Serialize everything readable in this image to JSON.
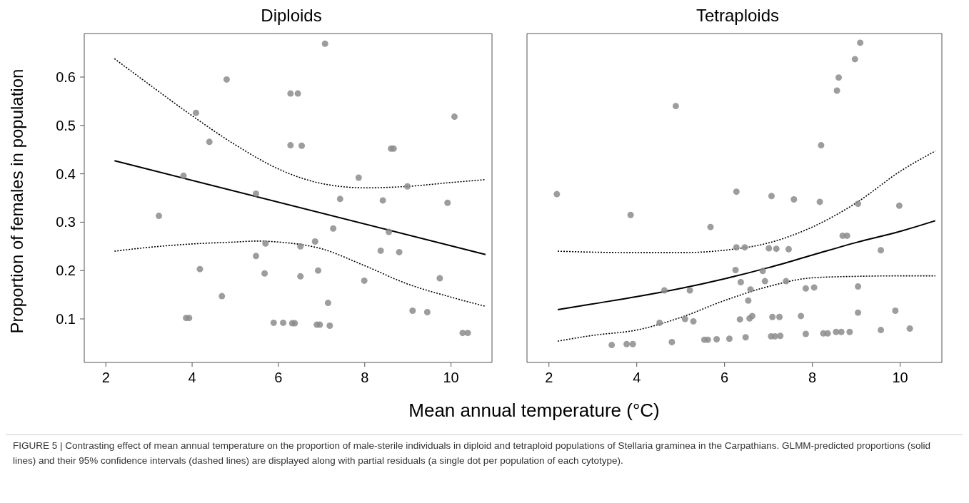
{
  "chart_data": [
    {
      "type": "scatter",
      "title": "Diploids",
      "ylabel": "Proportion of females in population",
      "xlabel": "Mean annual temperature (°C)",
      "xlim": [
        1.5,
        10.95
      ],
      "xticks": [
        2,
        4,
        6,
        8,
        10
      ],
      "ylim": [
        0.01,
        0.69
      ],
      "yticks": [
        0.1,
        0.2,
        0.3,
        0.4,
        0.5,
        0.6
      ],
      "grid": false,
      "annotations": [
        "FIGURE 5 | Contrasting effect of mean annual temperature on the proportion of male-sterile individuals in diploid and tetraploid populations of Stellaria graminea in the Carpathians. GLMM-predicted proportions (solid lines) and their 95% confidence intervals (dashed lines) are displayed along with partial residuals (a single dot per population of each cytotype)."
      ],
      "series": [
        {
          "color": "#8c8c8c",
          "marker": "circle",
          "x": [
            7.08,
            4.8,
            6.28,
            6.45,
            4.09,
            10.08,
            4.4,
            6.28,
            6.54,
            8.61,
            8.67,
            3.8,
            7.86,
            8.99,
            5.48,
            7.43,
            8.42,
            9.92,
            3.23,
            7.27,
            8.56,
            5.7,
            6.51,
            6.85,
            5.48,
            8.37,
            8.8,
            4.18,
            5.68,
            6.92,
            6.51,
            7.99,
            9.74,
            4.69,
            7.15,
            3.86,
            3.93,
            9.11,
            9.45,
            5.89,
            6.11,
            6.32,
            6.38,
            6.89,
            6.96,
            7.19,
            10.27,
            10.39
          ],
          "values": [
            0.669,
            0.595,
            0.566,
            0.566,
            0.526,
            0.518,
            0.466,
            0.459,
            0.458,
            0.452,
            0.452,
            0.396,
            0.392,
            0.374,
            0.359,
            0.348,
            0.345,
            0.34,
            0.313,
            0.287,
            0.28,
            0.256,
            0.25,
            0.26,
            0.23,
            0.241,
            0.238,
            0.203,
            0.194,
            0.2,
            0.188,
            0.179,
            0.184,
            0.147,
            0.133,
            0.102,
            0.102,
            0.117,
            0.114,
            0.092,
            0.092,
            0.091,
            0.091,
            0.088,
            0.088,
            0.086,
            0.071,
            0.071
          ]
        },
        {
          "type": "line",
          "color": "#000000",
          "line_style": "solid",
          "x": [
            2.2,
            10.8
          ],
          "values": [
            0.427,
            0.233
          ]
        },
        {
          "type": "line",
          "color": "#000000",
          "line_style": "dotted",
          "x": [
            2.2,
            3,
            4,
            5,
            6,
            7,
            8,
            9,
            10,
            10.8
          ],
          "values": [
            0.638,
            0.585,
            0.52,
            0.46,
            0.41,
            0.38,
            0.371,
            0.374,
            0.382,
            0.388
          ]
        },
        {
          "type": "line",
          "color": "#000000",
          "line_style": "dotted",
          "x": [
            2.2,
            3,
            4,
            5,
            5.5,
            6,
            7,
            8,
            9,
            10,
            10.8
          ],
          "values": [
            0.24,
            0.248,
            0.255,
            0.259,
            0.261,
            0.259,
            0.245,
            0.21,
            0.172,
            0.145,
            0.126
          ]
        }
      ]
    },
    {
      "type": "scatter",
      "title": "Tetraploids",
      "xlim": [
        1.5,
        10.95
      ],
      "xticks": [
        2,
        4,
        6,
        8,
        10
      ],
      "ylim": [
        0.01,
        0.69
      ],
      "yticks": [
        0.1,
        0.2,
        0.3,
        0.4,
        0.5,
        0.6
      ],
      "tick_labels": "x",
      "grid": false,
      "series": [
        {
          "color": "#8c8c8c",
          "marker": "circle",
          "x": [
            9.09,
            8.97,
            8.6,
            8.56,
            4.89,
            8.2,
            2.18,
            6.27,
            7.07,
            7.58,
            8.17,
            9.04,
            9.98,
            3.86,
            5.68,
            8.69,
            8.79,
            6.27,
            6.46,
            7.01,
            7.18,
            7.46,
            9.56,
            6.25,
            6.87,
            6.37,
            6.92,
            7.4,
            4.63,
            5.21,
            6.59,
            7.85,
            8.04,
            9.04,
            6.54,
            9.89,
            9.04,
            4.52,
            5.1,
            5.29,
            6.35,
            6.57,
            6.63,
            7.09,
            7.25,
            7.74,
            3.43,
            3.77,
            3.91,
            4.8,
            5.54,
            5.62,
            5.82,
            6.11,
            6.48,
            7.06,
            7.15,
            7.27,
            7.85,
            8.25,
            8.35,
            8.54,
            8.66,
            8.85,
            9.56,
            10.22
          ],
          "values": [
            0.671,
            0.637,
            0.599,
            0.572,
            0.54,
            0.459,
            0.358,
            0.363,
            0.354,
            0.347,
            0.342,
            0.338,
            0.334,
            0.315,
            0.29,
            0.272,
            0.272,
            0.248,
            0.248,
            0.246,
            0.245,
            0.244,
            0.242,
            0.201,
            0.199,
            0.176,
            0.178,
            0.178,
            0.159,
            0.159,
            0.161,
            0.163,
            0.165,
            0.167,
            0.138,
            0.117,
            0.113,
            0.092,
            0.1,
            0.095,
            0.099,
            0.101,
            0.106,
            0.104,
            0.104,
            0.106,
            0.046,
            0.048,
            0.048,
            0.052,
            0.057,
            0.057,
            0.058,
            0.059,
            0.062,
            0.064,
            0.064,
            0.065,
            0.069,
            0.07,
            0.07,
            0.073,
            0.073,
            0.073,
            0.077,
            0.08
          ]
        },
        {
          "type": "line",
          "color": "#000000",
          "line_style": "solid",
          "x": [
            2.2,
            3,
            4,
            5,
            6,
            7,
            8,
            9,
            10,
            10.8
          ],
          "values": [
            0.119,
            0.131,
            0.146,
            0.163,
            0.183,
            0.206,
            0.232,
            0.258,
            0.281,
            0.303
          ]
        },
        {
          "type": "line",
          "color": "#000000",
          "line_style": "dotted",
          "x": [
            2.2,
            3,
            4,
            5,
            6,
            7,
            8,
            9,
            10,
            10.8
          ],
          "values": [
            0.24,
            0.238,
            0.237,
            0.237,
            0.242,
            0.257,
            0.29,
            0.34,
            0.405,
            0.447
          ]
        },
        {
          "type": "line",
          "color": "#000000",
          "line_style": "dotted",
          "x": [
            2.2,
            3,
            4,
            5,
            6,
            7,
            8,
            9,
            10,
            10.8
          ],
          "values": [
            0.054,
            0.066,
            0.077,
            0.103,
            0.138,
            0.167,
            0.185,
            0.188,
            0.189,
            0.189
          ]
        }
      ]
    }
  ]
}
